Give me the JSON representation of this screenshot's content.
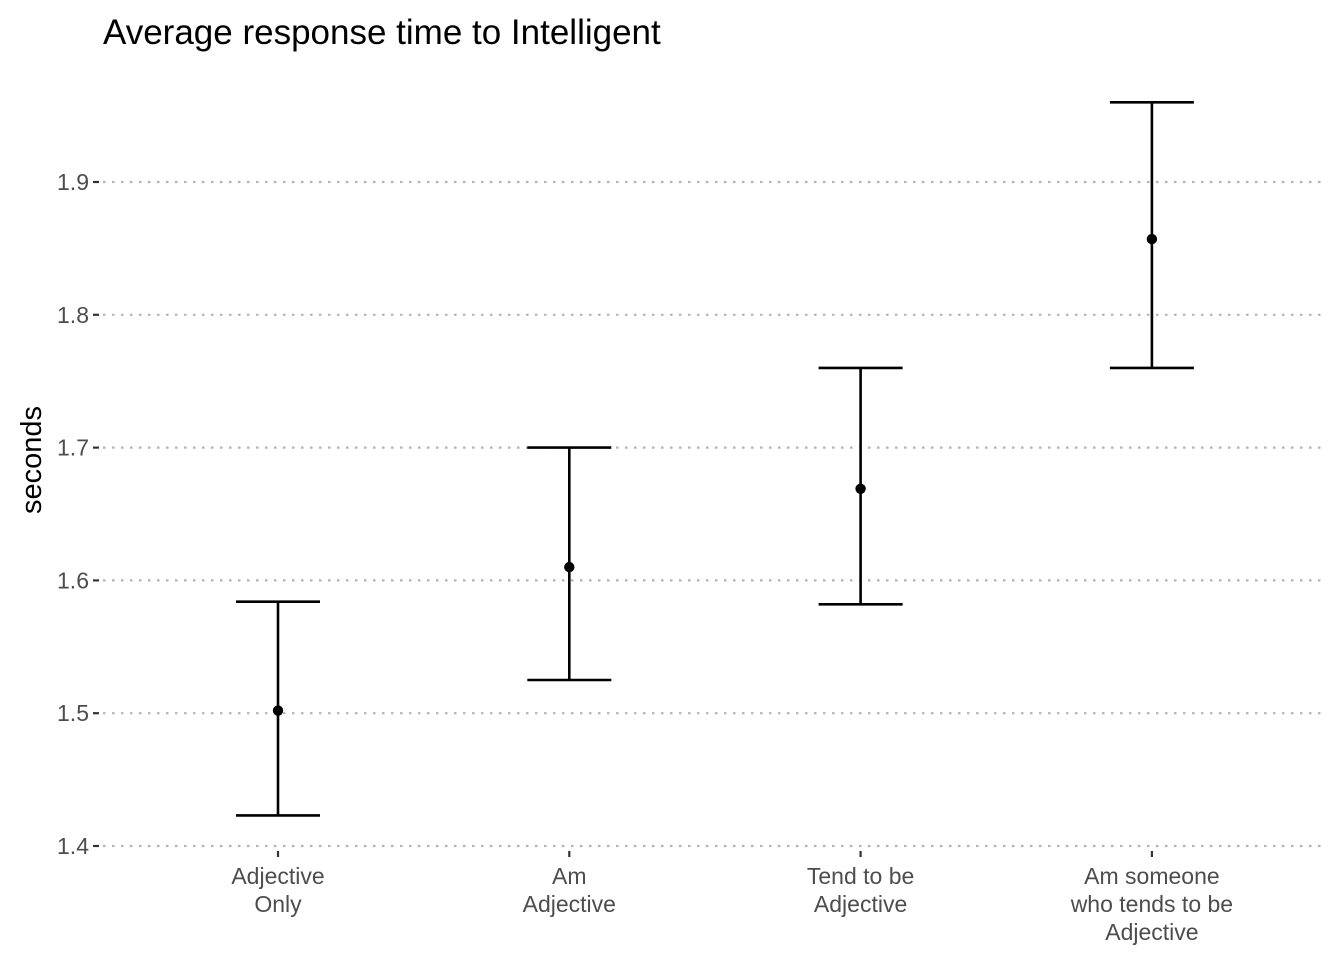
{
  "chart_data": {
    "type": "errorbar",
    "title": "Average response time to Intelligent",
    "xlabel": "",
    "ylabel": "seconds",
    "ylim": [
      1.4,
      1.96
    ],
    "yticks": [
      "1.4",
      "1.5",
      "1.6",
      "1.7",
      "1.8",
      "1.9"
    ],
    "grid": "horizontal-dotted",
    "legend": "none",
    "categories": [
      [
        "Adjective",
        "Only"
      ],
      [
        "Am",
        "Adjective"
      ],
      [
        "Tend to be",
        "Adjective"
      ],
      [
        "Am someone",
        "who tends to be",
        "Adjective"
      ]
    ],
    "series": [
      {
        "name": "mean",
        "values": [
          1.502,
          1.61,
          1.669,
          1.857
        ],
        "lower": [
          1.423,
          1.525,
          1.582,
          1.76
        ],
        "upper": [
          1.584,
          1.7,
          1.76,
          1.96
        ]
      }
    ]
  }
}
